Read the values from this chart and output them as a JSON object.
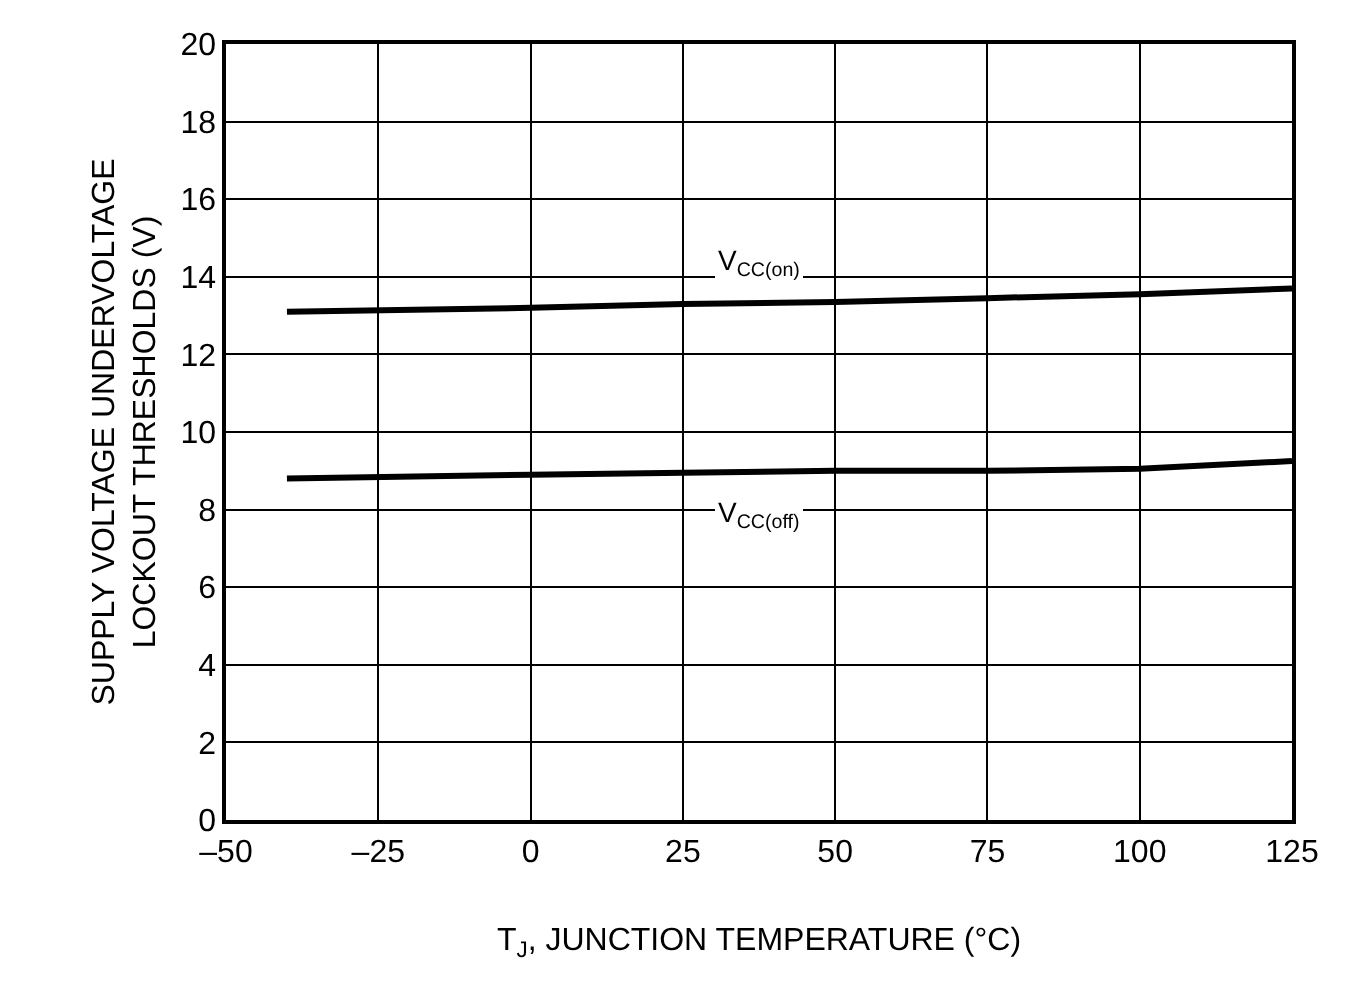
{
  "chart_data": {
    "type": "line",
    "xlabel": "T$_{J}$, JUNCTION TEMPERATURE (°C)",
    "ylabel": "SUPPLY VOLTAGE UNDERVOLTAGE\nLOCKOUT THRESHOLDS (V)",
    "x": [
      -40,
      0,
      25,
      50,
      75,
      100,
      125
    ],
    "series": [
      {
        "name": "V$_{CC(on)}$",
        "color": "#000000",
        "values": [
          13.1,
          13.2,
          13.3,
          13.35,
          13.45,
          13.55,
          13.7
        ]
      },
      {
        "name": "V$_{CC(off)}$",
        "color": "#000000",
        "values": [
          8.8,
          8.9,
          8.95,
          9.0,
          9.0,
          9.05,
          9.25
        ]
      }
    ],
    "xlim": [
      -50,
      125
    ],
    "xticks": [
      {
        "value": -50,
        "label": "–50"
      },
      {
        "value": -25,
        "label": "–25"
      },
      0,
      25,
      50,
      75,
      100,
      125
    ],
    "ylim": [
      0,
      20
    ],
    "yticks": [
      0,
      2,
      4,
      6,
      8,
      10,
      12,
      14,
      16,
      18,
      20
    ],
    "grid": true,
    "legend": false,
    "line_style": "solid",
    "marker": "none"
  }
}
